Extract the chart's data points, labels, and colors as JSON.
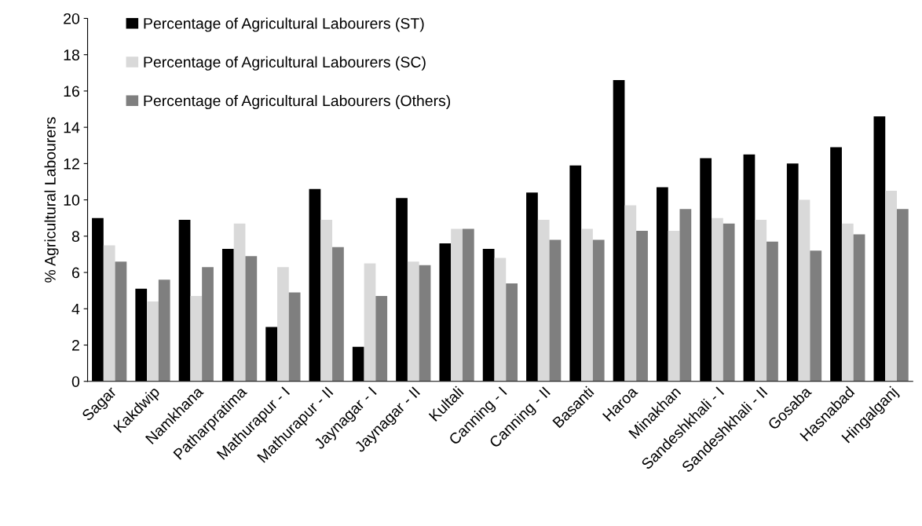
{
  "chart_data": {
    "type": "bar",
    "ylabel": "% Agricultural Labourers",
    "categories": [
      "Sagar",
      "Kakdwip",
      "Namkhana",
      "Patharpratima",
      "Mathurapur - I",
      "Mathurapur - II",
      "Jaynagar - I",
      "Jaynagar - II",
      "Kultali",
      "Canning - I",
      "Canning - II",
      "Basanti",
      "Haroa",
      "Minakhan",
      "Sandeshkhali - I",
      "Sandeshkhali - II",
      "Gosaba",
      "Hasnabad",
      "Hingalganj"
    ],
    "series": [
      {
        "name": "Percentage of Agricultural Labourers (ST)",
        "color": "#000000",
        "values": [
          9.0,
          5.1,
          8.9,
          7.3,
          3.0,
          10.6,
          1.9,
          10.1,
          7.6,
          7.3,
          10.4,
          11.9,
          16.6,
          10.7,
          12.3,
          12.5,
          12.0,
          12.9,
          14.6
        ]
      },
      {
        "name": "Percentage of Agricultural Labourers (SC)",
        "color": "#d9d9d9",
        "values": [
          7.5,
          4.4,
          4.7,
          8.7,
          6.3,
          8.9,
          6.5,
          6.6,
          8.4,
          6.8,
          8.9,
          8.4,
          9.7,
          8.3,
          9.0,
          8.9,
          10.0,
          8.7,
          10.5
        ]
      },
      {
        "name": "Percentage of Agricultural Labourers (Others)",
        "color": "#7f7f7f",
        "values": [
          6.6,
          5.6,
          6.3,
          6.9,
          4.9,
          7.4,
          4.7,
          6.4,
          8.4,
          5.4,
          7.8,
          7.8,
          8.3,
          9.5,
          8.7,
          7.7,
          7.2,
          8.1,
          9.5
        ]
      }
    ],
    "ylim": [
      0,
      20
    ],
    "yticks": [
      0,
      2,
      4,
      6,
      8,
      10,
      12,
      14,
      16,
      18,
      20
    ],
    "grid": false,
    "legend": "top left"
  }
}
